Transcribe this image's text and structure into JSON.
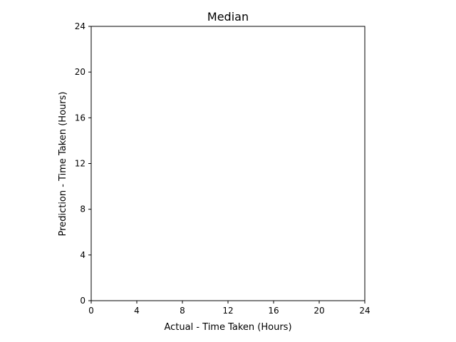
{
  "chart_data": {
    "type": "scatter",
    "title": "Median",
    "xlabel": "Actual - Time Taken (Hours)",
    "ylabel": "Prediction - Time Taken (Hours)",
    "xlim": [
      0,
      24
    ],
    "ylim": [
      0,
      24
    ],
    "xticks": [
      0,
      4,
      8,
      12,
      16,
      20,
      24
    ],
    "yticks": [
      0,
      4,
      8,
      12,
      16,
      20,
      24
    ],
    "grid": false,
    "series": []
  }
}
